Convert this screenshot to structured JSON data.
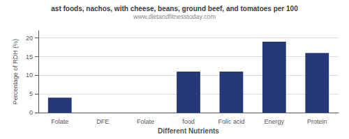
{
  "chart_data": {
    "type": "bar",
    "title": "ast foods, nachos, with cheese, beans, ground beef, and tomatoes per 100",
    "subtitle": "www.dietandfitnesstoday.com",
    "categories": [
      "Folate",
      "DFE",
      "Folate",
      "food",
      "Folic acid",
      "Energy",
      "Protein"
    ],
    "values": [
      4,
      0,
      0,
      11,
      11,
      19,
      16
    ],
    "color": "#253878",
    "xlabel": "Different Nutrients",
    "ylabel": "Percentage of RDH (%)",
    "ylim": [
      0,
      22
    ],
    "yticks": [
      0,
      5,
      10,
      15,
      20
    ],
    "grid": true
  }
}
